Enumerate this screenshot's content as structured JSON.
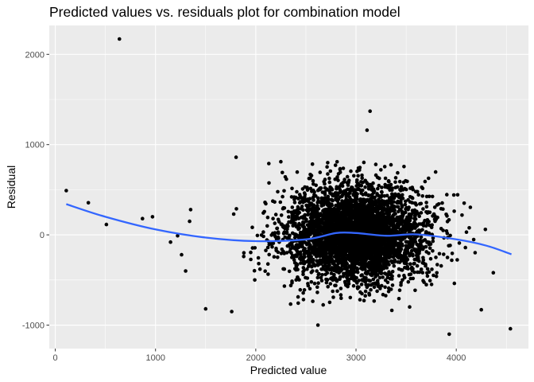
{
  "chart_data": {
    "type": "scatter",
    "title": "Predicted values vs. residuals plot for combination model",
    "xlabel": "Predicted value",
    "ylabel": "Residual",
    "xlim": [
      -60,
      4720
    ],
    "ylim": [
      -1260,
      2320
    ],
    "x_ticks": [
      0,
      1000,
      2000,
      3000,
      4000
    ],
    "x_tick_labels": [
      "0",
      "1000",
      "2000",
      "3000",
      "4000"
    ],
    "y_ticks": [
      -1000,
      0,
      1000,
      2000
    ],
    "y_tick_labels": [
      "-1000",
      "0",
      "1000",
      "2000"
    ],
    "grid": true,
    "legend": "none",
    "colors": {
      "panel": "#ebebeb",
      "grid_major": "#ffffff",
      "points": "#000000",
      "smooth": "#3366ff"
    },
    "outliers": [
      [
        110,
        490
      ],
      [
        330,
        355
      ],
      [
        510,
        115
      ],
      [
        640,
        2170
      ],
      [
        870,
        180
      ],
      [
        970,
        200
      ],
      [
        1150,
        -80
      ],
      [
        1220,
        -10
      ],
      [
        1260,
        -220
      ],
      [
        1300,
        -400
      ],
      [
        1340,
        150
      ],
      [
        1350,
        280
      ],
      [
        1500,
        -820
      ],
      [
        1760,
        -850
      ],
      [
        1780,
        230
      ],
      [
        1880,
        -240
      ],
      [
        1990,
        -500
      ],
      [
        2130,
        790
      ],
      [
        2250,
        810
      ],
      [
        3110,
        1160
      ],
      [
        3140,
        1370
      ],
      [
        3930,
        -1100
      ],
      [
        4250,
        -830
      ],
      [
        4290,
        60
      ],
      [
        4370,
        -420
      ],
      [
        4540,
        -1040
      ],
      [
        2620,
        -1000
      ]
    ],
    "cluster": {
      "n": 4200,
      "x_mean": 3000,
      "x_sd": 350,
      "y_mean": 0,
      "y_sd": 265,
      "seed": 17
    },
    "smooth": {
      "x": [
        110,
        500,
        1000,
        1500,
        2000,
        2500,
        2800,
        3000,
        3300,
        3600,
        4000,
        4300,
        4550
      ],
      "y": [
        340,
        200,
        60,
        -30,
        -70,
        -50,
        20,
        20,
        -10,
        5,
        -50,
        -120,
        -215
      ]
    }
  }
}
